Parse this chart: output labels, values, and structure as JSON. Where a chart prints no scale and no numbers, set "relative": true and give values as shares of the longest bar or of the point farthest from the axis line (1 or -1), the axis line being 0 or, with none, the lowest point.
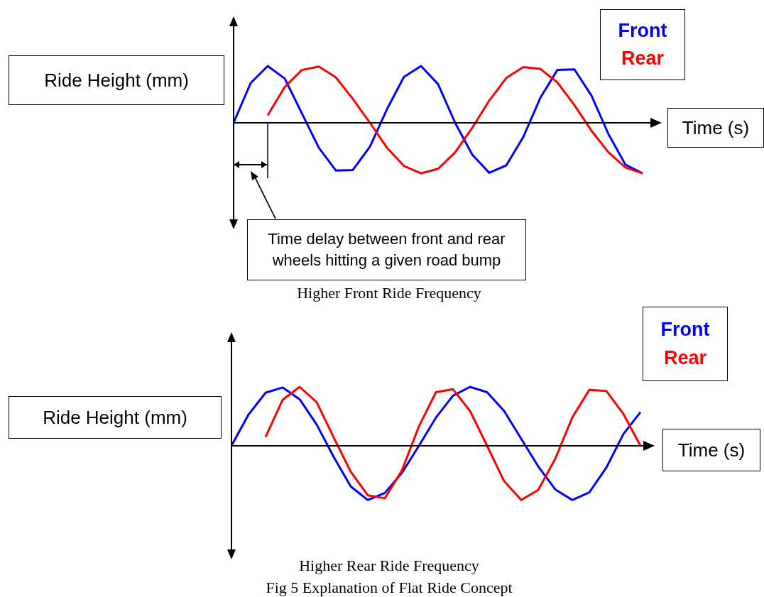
{
  "chart_data": [
    {
      "type": "line",
      "title": "Higher Front Ride Frequency",
      "xlabel": "Time (s)",
      "ylabel": "Ride Height (mm)",
      "relative": true,
      "legend": "top right",
      "annotations": [
        "Time delay between front and rear wheels hitting a given road bump"
      ],
      "categories": [
        null,
        null,
        null,
        null,
        null,
        null,
        null,
        null,
        null,
        null,
        null,
        null,
        null,
        null,
        null,
        null,
        null,
        null,
        null,
        null,
        null,
        null,
        null,
        null,
        null
      ],
      "series": [
        {
          "name": "Front",
          "color": "#0000ff",
          "values": [
            0,
            0.7,
            1,
            0.78,
            0.17,
            -0.44,
            -0.84,
            -0.83,
            -0.42,
            0.24,
            0.81,
            1,
            0.68,
            0,
            -0.56,
            -0.88,
            -0.75,
            -0.25,
            0.44,
            0.93,
            0.94,
            0.48,
            -0.2,
            -0.74,
            -0.89
          ]
        },
        {
          "name": "Rear",
          "color": "#ff0000",
          "values": [
            null,
            null,
            0.13,
            0.63,
            0.93,
            0.99,
            0.8,
            0.42,
            0,
            -0.44,
            -0.76,
            -0.89,
            -0.81,
            -0.52,
            -0.09,
            0.39,
            0.79,
            0.98,
            0.95,
            0.71,
            0.31,
            -0.14,
            -0.52,
            -0.79,
            -0.89
          ]
        }
      ]
    },
    {
      "type": "line",
      "title": "Higher Rear Ride Frequency",
      "xlabel": "Time (s)",
      "ylabel": "Ride Height (mm)",
      "relative": true,
      "legend": "top right",
      "annotations": [
        "Fig 5 Explanation of Flat Ride Concept"
      ],
      "categories": [
        null,
        null,
        null,
        null,
        null,
        null,
        null,
        null,
        null,
        null,
        null,
        null,
        null,
        null,
        null,
        null,
        null,
        null,
        null,
        null,
        null,
        null,
        null,
        null,
        null
      ],
      "series": [
        {
          "name": "Front",
          "color": "#0000ff",
          "values": [
            0,
            0.53,
            0.9,
            0.99,
            0.79,
            0.36,
            -0.19,
            -0.69,
            -0.92,
            -0.8,
            -0.46,
            0,
            0.48,
            0.85,
            1,
            0.91,
            0.59,
            0.12,
            -0.35,
            -0.74,
            -0.92,
            -0.79,
            -0.37,
            0.2,
            0.57
          ]
        },
        {
          "name": "Rear",
          "color": "#ff0000",
          "values": [
            null,
            null,
            0.15,
            0.78,
            1,
            0.74,
            0.14,
            -0.44,
            -0.84,
            -0.89,
            -0.42,
            0.33,
            0.91,
            0.96,
            0.59,
            0,
            -0.6,
            -0.92,
            -0.75,
            -0.22,
            0.48,
            0.95,
            0.93,
            0.54,
            0
          ]
        }
      ]
    }
  ]
}
